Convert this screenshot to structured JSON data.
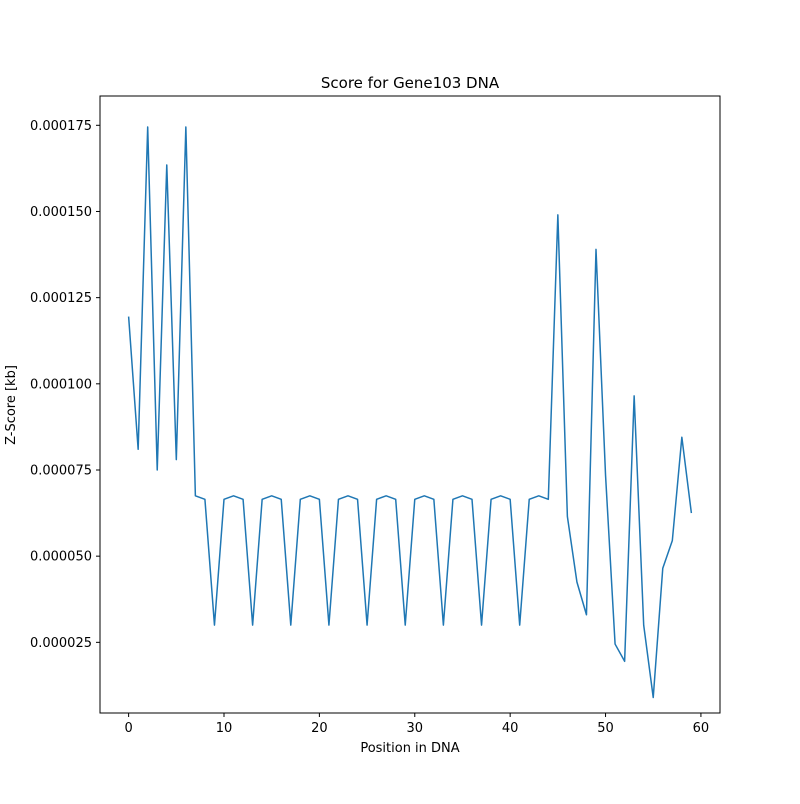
{
  "chart_data": {
    "type": "line",
    "title": "Score for Gene103 DNA",
    "xlabel": "Position in DNA",
    "ylabel": "Z-Score [kb]",
    "xlim": [
      -3,
      62
    ],
    "ylim": [
      4.5e-06,
      0.0001835
    ],
    "xticks": [
      0,
      10,
      20,
      30,
      40,
      50,
      60
    ],
    "xtick_labels": [
      "0",
      "10",
      "20",
      "30",
      "40",
      "50",
      "60"
    ],
    "yticks": [
      2.5e-05,
      5e-05,
      7.5e-05,
      0.0001,
      0.000125,
      0.00015,
      0.000175
    ],
    "ytick_labels": [
      "0.000025",
      "0.000050",
      "0.000075",
      "0.000100",
      "0.000125",
      "0.000150",
      "0.000175"
    ],
    "grid": false,
    "series": [
      {
        "color": "#1f77b4",
        "x": [
          0,
          1,
          2,
          3,
          4,
          5,
          6,
          7,
          8,
          9,
          10,
          11,
          12,
          13,
          14,
          15,
          16,
          17,
          18,
          19,
          20,
          21,
          22,
          23,
          24,
          25,
          26,
          27,
          28,
          29,
          30,
          31,
          32,
          33,
          34,
          35,
          36,
          37,
          38,
          39,
          40,
          41,
          42,
          43,
          44,
          45,
          46,
          47,
          48,
          49,
          50,
          51,
          52,
          53,
          54,
          55,
          56,
          57,
          58,
          59
        ],
        "y": [
          0.0001195,
          8.1e-05,
          0.0001745,
          7.5e-05,
          0.0001635,
          7.8e-05,
          0.0001745,
          6.75e-05,
          6.65e-05,
          3e-05,
          6.65e-05,
          6.75e-05,
          6.65e-05,
          3e-05,
          6.65e-05,
          6.75e-05,
          6.65e-05,
          3e-05,
          6.65e-05,
          6.75e-05,
          6.65e-05,
          3e-05,
          6.65e-05,
          6.75e-05,
          6.65e-05,
          3e-05,
          6.65e-05,
          6.75e-05,
          6.65e-05,
          3e-05,
          6.65e-05,
          6.75e-05,
          6.65e-05,
          3e-05,
          6.65e-05,
          6.75e-05,
          6.65e-05,
          3e-05,
          6.65e-05,
          6.75e-05,
          6.65e-05,
          3e-05,
          6.65e-05,
          6.75e-05,
          6.65e-05,
          0.000149,
          6.15e-05,
          4.25e-05,
          3.3e-05,
          0.000139,
          7.35e-05,
          2.45e-05,
          1.95e-05,
          9.65e-05,
          3e-05,
          9e-06,
          4.65e-05,
          5.45e-05,
          8.45e-05,
          6.25e-05
        ]
      }
    ]
  }
}
